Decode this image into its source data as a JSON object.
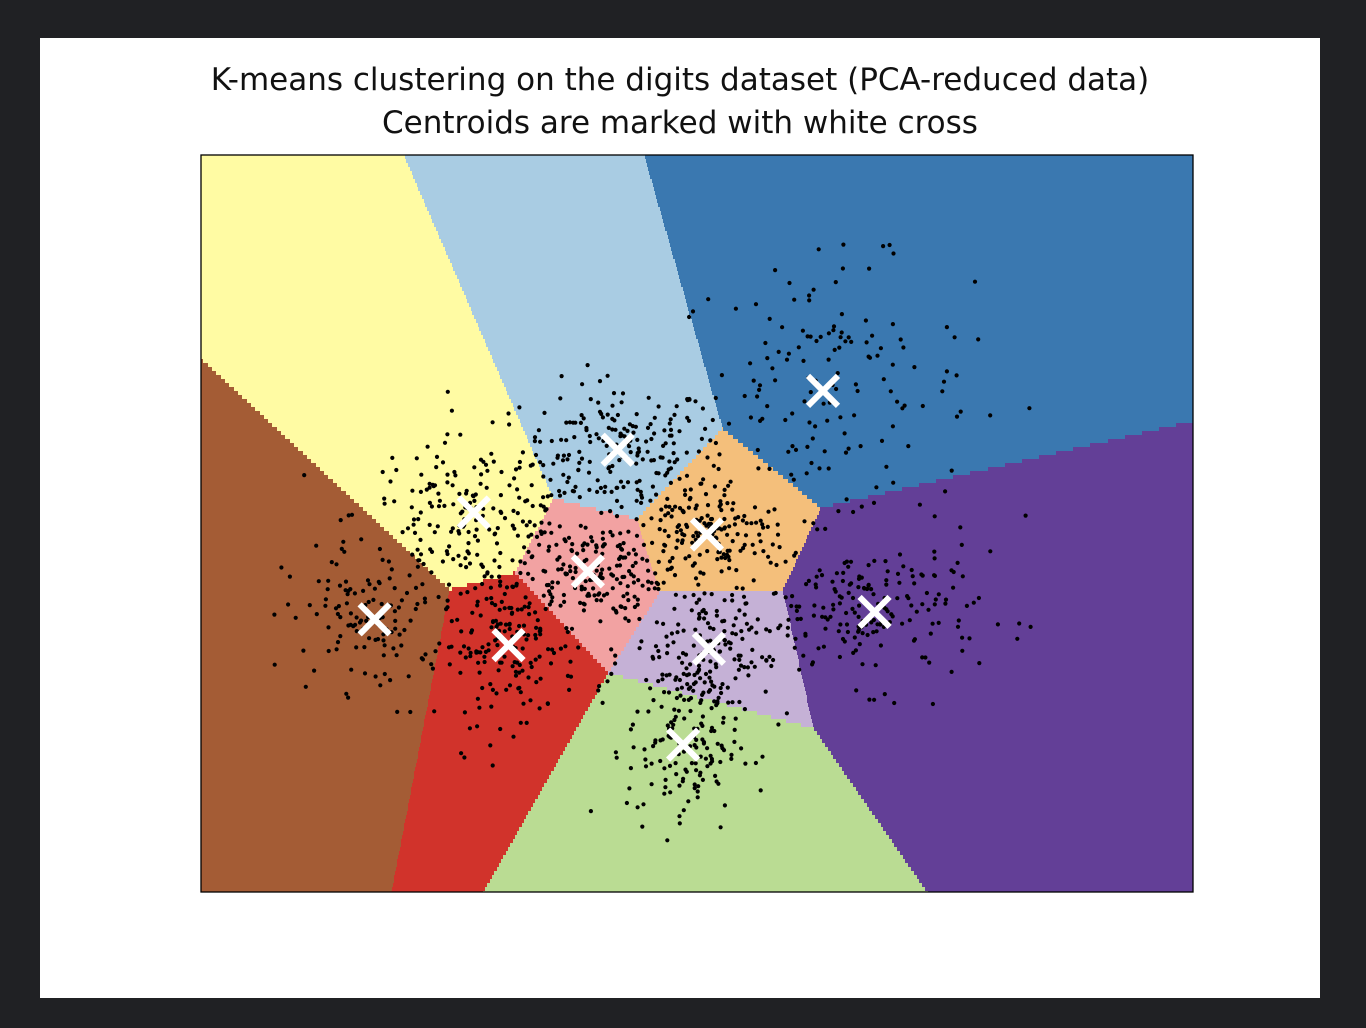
{
  "chart_data": {
    "type": "scatter",
    "title": "K-means clustering on the digits dataset (PCA-reduced data)",
    "subtitle": "Centroids are marked with white cross",
    "xlabel": "",
    "ylabel": "",
    "x_ticks": [],
    "y_ticks": [],
    "xlim": [
      0,
      100
    ],
    "ylim": [
      0,
      100
    ],
    "grid": false,
    "legend": "none",
    "background_regions": {
      "description": "Voronoi decision regions of 10 clusters",
      "colors": [
        "#a9cce3",
        "#3a78b0",
        "#fffba3",
        "#f4bf7b",
        "#f2a2a2",
        "#a45c35",
        "#d1332b",
        "#633f97",
        "#c5b1d6",
        "#badc93"
      ]
    },
    "centroids": [
      {
        "x": 42.0,
        "y": 60.0
      },
      {
        "x": 62.7,
        "y": 68.0
      },
      {
        "x": 27.5,
        "y": 51.5
      },
      {
        "x": 51.0,
        "y": 48.5
      },
      {
        "x": 39.0,
        "y": 43.5
      },
      {
        "x": 17.5,
        "y": 37.0
      },
      {
        "x": 31.0,
        "y": 33.5
      },
      {
        "x": 67.9,
        "y": 38.0
      },
      {
        "x": 51.2,
        "y": 33.0
      },
      {
        "x": 48.6,
        "y": 20.0
      }
    ],
    "centroid_color": "#ffffff",
    "point_color": "#000000",
    "point_spread": [
      {
        "x": 42.0,
        "y": 60.0,
        "n": 180,
        "sx": 4.8,
        "sy": 4.6
      },
      {
        "x": 62.7,
        "y": 68.0,
        "n": 160,
        "sx": 7.5,
        "sy": 8.5
      },
      {
        "x": 27.5,
        "y": 51.5,
        "n": 180,
        "sx": 6.0,
        "sy": 5.0
      },
      {
        "x": 51.0,
        "y": 48.5,
        "n": 170,
        "sx": 4.2,
        "sy": 4.0
      },
      {
        "x": 39.0,
        "y": 43.5,
        "n": 170,
        "sx": 3.5,
        "sy": 3.5
      },
      {
        "x": 17.5,
        "y": 37.0,
        "n": 120,
        "sx": 4.5,
        "sy": 4.8
      },
      {
        "x": 31.0,
        "y": 33.5,
        "n": 170,
        "sx": 3.5,
        "sy": 5.2
      },
      {
        "x": 67.9,
        "y": 38.0,
        "n": 180,
        "sx": 5.3,
        "sy": 5.0
      },
      {
        "x": 51.2,
        "y": 33.0,
        "n": 170,
        "sx": 4.2,
        "sy": 4.8
      },
      {
        "x": 48.6,
        "y": 20.0,
        "n": 150,
        "sx": 2.8,
        "sy": 6.0
      }
    ]
  }
}
